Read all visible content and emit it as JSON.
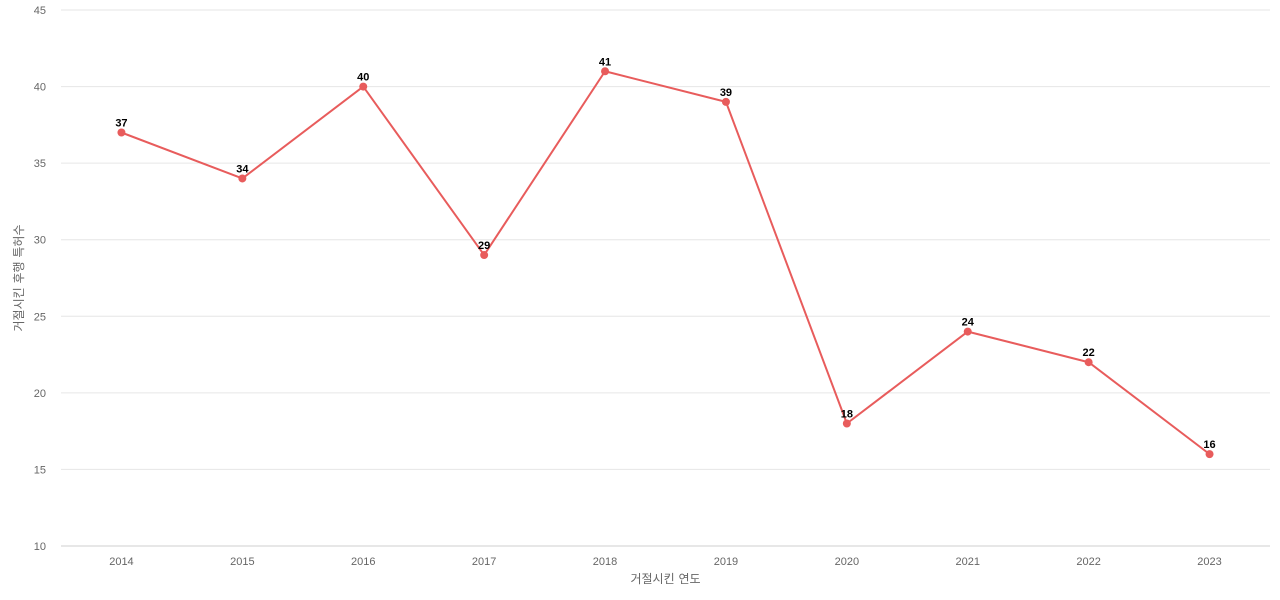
{
  "chart_data": {
    "type": "line",
    "title": "",
    "xlabel": "거절시킨 연도",
    "ylabel": "거절시킨 후행 특허수",
    "categories": [
      "2014",
      "2015",
      "2016",
      "2017",
      "2018",
      "2019",
      "2020",
      "2021",
      "2022",
      "2023"
    ],
    "series": [
      {
        "values": [
          37,
          34,
          40,
          29,
          41,
          39,
          18,
          24,
          22,
          16
        ],
        "color": "#e85c5c"
      }
    ],
    "ylim": [
      10,
      45
    ],
    "yticks": [
      10,
      15,
      20,
      25,
      30,
      35,
      40,
      45
    ],
    "grid": true,
    "legend": "none",
    "data_labels": true
  }
}
